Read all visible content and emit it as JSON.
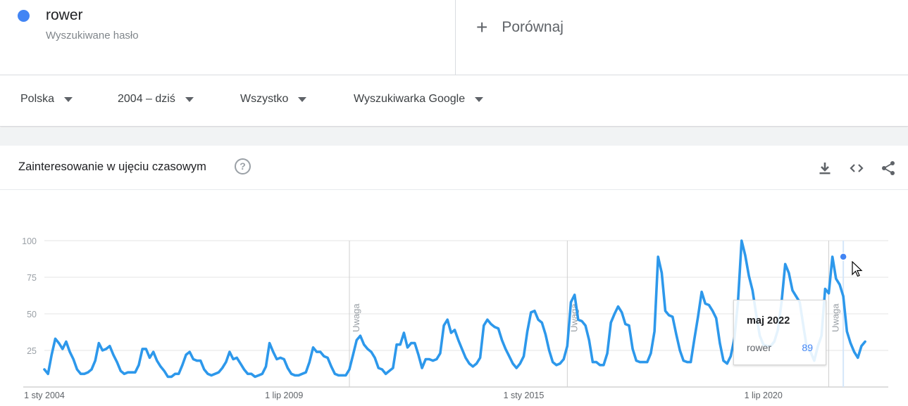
{
  "term": {
    "name": "rower",
    "subtitle": "Wyszukiwane hasło",
    "color": "#4285f4"
  },
  "compare": {
    "label": "Porównaj"
  },
  "filters": [
    {
      "label": "Polska"
    },
    {
      "label": "2004 – dziś"
    },
    {
      "label": "Wszystko"
    },
    {
      "label": "Wyszukiwarka Google"
    }
  ],
  "card": {
    "title": "Zainteresowanie w ujęciu czasowym",
    "help": "?",
    "actions": [
      "download-icon",
      "embed-icon",
      "share-icon"
    ]
  },
  "tooltip": {
    "date": "maj 2022",
    "series": "rower",
    "value": "89"
  },
  "chart_data": {
    "type": "line",
    "series": [
      {
        "name": "rower",
        "color": "#2d98eb",
        "values": [
          12,
          9,
          22,
          33,
          30,
          26,
          31,
          24,
          19,
          12,
          9,
          9,
          10,
          12,
          18,
          30,
          25,
          26,
          28,
          22,
          17,
          11,
          9,
          10,
          10,
          10,
          15,
          26,
          26,
          20,
          24,
          18,
          14,
          11,
          7,
          7,
          9,
          9,
          15,
          22,
          24,
          19,
          18,
          18,
          12,
          9,
          8,
          9,
          10,
          13,
          17,
          24,
          19,
          20,
          16,
          12,
          9,
          9,
          7,
          8,
          9,
          14,
          30,
          24,
          19,
          20,
          19,
          13,
          9,
          8,
          8,
          9,
          10,
          17,
          27,
          24,
          24,
          21,
          20,
          14,
          9,
          8,
          8,
          8,
          12,
          22,
          32,
          35,
          29,
          26,
          24,
          20,
          13,
          12,
          9,
          11,
          13,
          29,
          29,
          37,
          27,
          30,
          30,
          22,
          13,
          19,
          19,
          18,
          19,
          23,
          42,
          46,
          37,
          39,
          32,
          26,
          20,
          16,
          14,
          16,
          20,
          42,
          46,
          43,
          41,
          40,
          32,
          26,
          21,
          16,
          13,
          16,
          21,
          38,
          51,
          52,
          46,
          44,
          36,
          25,
          17,
          15,
          16,
          19,
          28,
          58,
          63,
          46,
          45,
          42,
          32,
          17,
          17,
          15,
          15,
          23,
          44,
          50,
          55,
          51,
          43,
          42,
          26,
          18,
          17,
          17,
          17,
          23,
          38,
          89,
          78,
          52,
          49,
          48,
          36,
          25,
          18,
          17,
          17,
          33,
          48,
          65,
          57,
          56,
          52,
          47,
          30,
          18,
          16,
          21,
          33,
          58,
          100,
          90,
          76,
          66,
          50,
          35,
          29,
          28,
          28,
          31,
          39,
          58,
          84,
          78,
          66,
          62,
          58,
          42,
          26,
          24,
          18,
          28,
          35,
          67,
          64,
          89,
          74,
          70,
          62,
          38,
          30,
          24,
          20,
          28,
          31
        ]
      }
    ],
    "x_start": "2004-01",
    "x_end": "2023-05",
    "x_ticks": [
      {
        "label": "1 sty 2004",
        "date": "2004-01"
      },
      {
        "label": "1 lip 2009",
        "date": "2009-07"
      },
      {
        "label": "1 sty 2015",
        "date": "2015-01"
      },
      {
        "label": "1 lip 2020",
        "date": "2020-07"
      }
    ],
    "y_ticks": [
      "100",
      "75",
      "50",
      "25"
    ],
    "ylim": [
      0,
      100
    ],
    "annotations": [
      {
        "label": "Uwaga",
        "date": "2011-01"
      },
      {
        "label": "Uwaga",
        "date": "2016-01"
      },
      {
        "label": "Uwaga",
        "date": "2022-01"
      }
    ],
    "highlight": {
      "date": "2022-05",
      "value": 89
    },
    "grid": true
  }
}
